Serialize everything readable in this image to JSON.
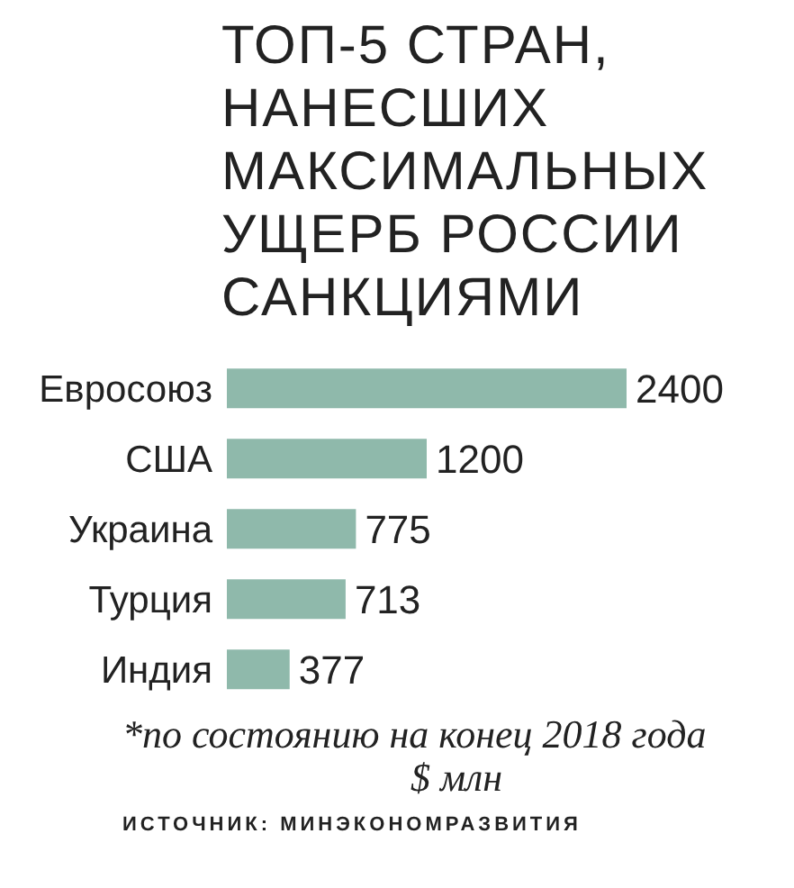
{
  "chart_data": {
    "type": "bar",
    "orientation": "horizontal",
    "title": "ТОП-5 СТРАН,\nНАНЕСШИХ\nМАКСИМАЛЬНЫХ\nУЩЕРБ РОССИИ\nСАНКЦИЯМИ",
    "categories": [
      "Евросоюз",
      "США",
      "Украина",
      "Турция",
      "Индия"
    ],
    "values": [
      2400,
      1200,
      775,
      713,
      377
    ],
    "color": "#8fb9ab",
    "data_labels": true,
    "grid": false,
    "legend": false,
    "annotations": [
      "*по состоянию на конец 2018 года",
      "$ млн",
      "ИСТОЧНИК: МИНЭКОНОМРАЗВИТИЯ"
    ]
  }
}
